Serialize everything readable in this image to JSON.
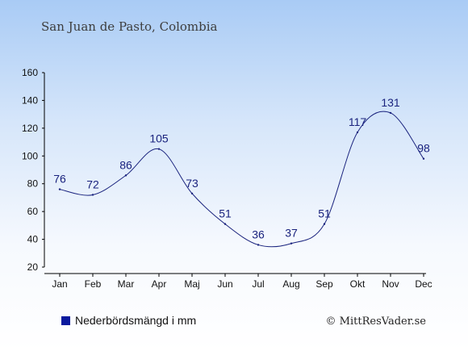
{
  "chart_data": {
    "type": "line",
    "title": "San Juan de Pasto, Colombia",
    "categories": [
      "Jan",
      "Feb",
      "Mar",
      "Apr",
      "Maj",
      "Jun",
      "Jul",
      "Aug",
      "Sep",
      "Okt",
      "Nov",
      "Dec"
    ],
    "series": [
      {
        "name": "Nederbördsmängd i mm",
        "values": [
          76,
          72,
          86,
          105,
          73,
          51,
          36,
          37,
          51,
          117,
          131,
          98
        ]
      }
    ],
    "yticks": [
      20,
      40,
      60,
      80,
      100,
      120,
      140,
      160
    ],
    "ylim": [
      20,
      160
    ],
    "grid": false,
    "legend_position": "bottom-left",
    "colors": {
      "line": "#1a237e",
      "legend_marker": "#0a1a9e"
    }
  },
  "credit": "© MittResVader.se"
}
